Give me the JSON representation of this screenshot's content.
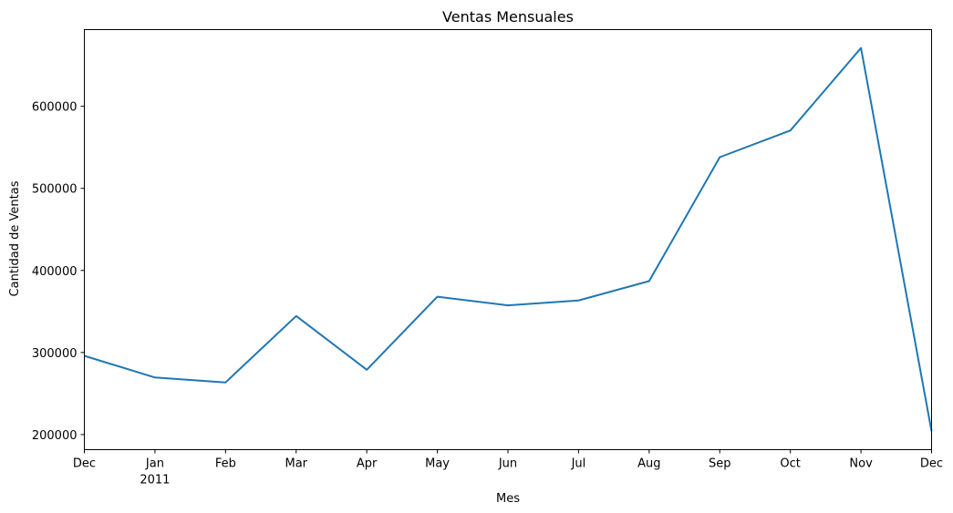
{
  "chart_data": {
    "type": "line",
    "title": "Ventas Mensuales",
    "xlabel": "Mes",
    "ylabel": "Cantidad de Ventas",
    "x": [
      "2010-12",
      "2011-01",
      "2011-02",
      "2011-03",
      "2011-04",
      "2011-05",
      "2011-06",
      "2011-07",
      "2011-08",
      "2011-09",
      "2011-10",
      "2011-11",
      "2011-12"
    ],
    "x_tick_labels": [
      {
        "label": "Dec",
        "sublabel": ""
      },
      {
        "label": "Jan",
        "sublabel": "2011"
      },
      {
        "label": "Feb",
        "sublabel": ""
      },
      {
        "label": "Mar",
        "sublabel": ""
      },
      {
        "label": "Apr",
        "sublabel": ""
      },
      {
        "label": "May",
        "sublabel": ""
      },
      {
        "label": "Jun",
        "sublabel": ""
      },
      {
        "label": "Jul",
        "sublabel": ""
      },
      {
        "label": "Aug",
        "sublabel": ""
      },
      {
        "label": "Sep",
        "sublabel": ""
      },
      {
        "label": "Oct",
        "sublabel": ""
      },
      {
        "label": "Nov",
        "sublabel": ""
      },
      {
        "label": "Dec",
        "sublabel": ""
      }
    ],
    "series": [
      {
        "values": [
          296000,
          269500,
          263500,
          344500,
          279000,
          368000,
          357500,
          363500,
          387000,
          538000,
          570500,
          671000,
          204000
        ],
        "color": "#1f77b4"
      }
    ],
    "yticks": [
      200000,
      300000,
      400000,
      500000,
      600000
    ],
    "ytick_labels": [
      "200000",
      "300000",
      "400000",
      "500000",
      "600000"
    ],
    "ylim": [
      181600,
      693400
    ],
    "grid": false,
    "legend": "none"
  }
}
